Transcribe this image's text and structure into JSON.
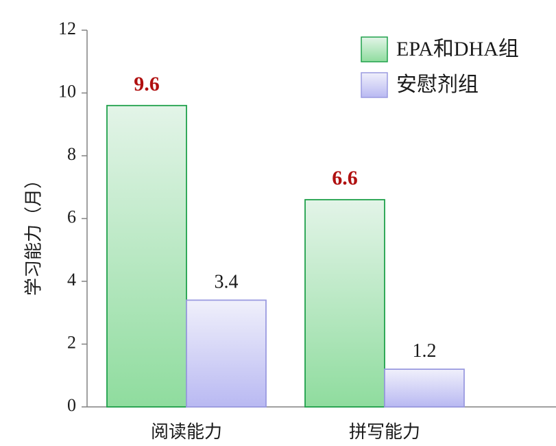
{
  "chart_data": {
    "type": "bar",
    "title": "",
    "xlabel": "",
    "ylabel": "学习能力（月）",
    "categories": [
      "阅读能力",
      "拼写能力"
    ],
    "series": [
      {
        "name": "EPA和DHA组",
        "values": [
          9.6,
          6.6
        ],
        "color_top": "#e3f4e8",
        "color_bottom": "#8fdc9e",
        "stroke": "#1ea04a",
        "label_color": "#b01010",
        "label_bold": true
      },
      {
        "name": "安慰剂组",
        "values": [
          3.4,
          1.2
        ],
        "color_top": "#f0f0fb",
        "color_bottom": "#b9b9f2",
        "stroke": "#9a9ae0",
        "label_color": "#1a1a1a",
        "label_bold": false
      }
    ],
    "ylim": [
      0,
      12
    ],
    "yticks": [
      0,
      2,
      4,
      6,
      8,
      10,
      12
    ],
    "legend_position": "top-right",
    "grid": false
  }
}
